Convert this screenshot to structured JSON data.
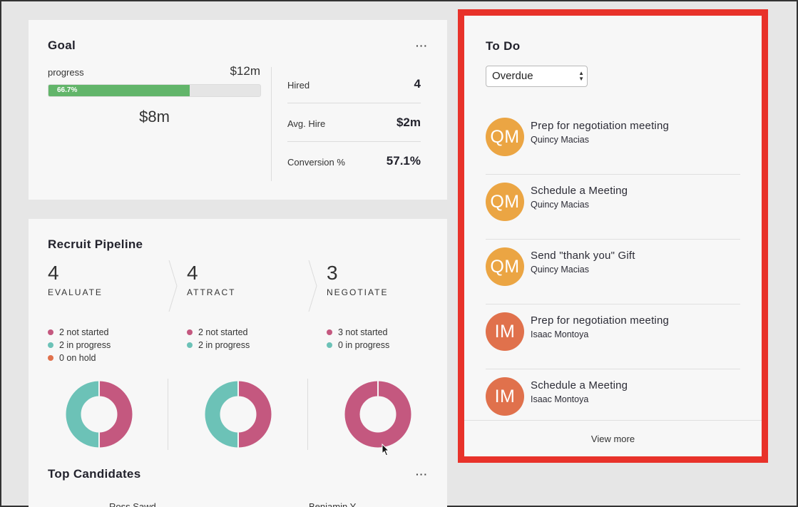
{
  "goal": {
    "title": "Goal",
    "more_label": "···",
    "progress_label": "progress",
    "target": "$12m",
    "progress_percent_label": "66.7%",
    "progress_fraction": 0.667,
    "current": "$8m",
    "stats": [
      {
        "label": "Hired",
        "value": "4"
      },
      {
        "label": "Avg. Hire",
        "value": "$2m"
      },
      {
        "label": "Conversion %",
        "value": "57.1%"
      }
    ]
  },
  "pipeline": {
    "title": "Recruit Pipeline",
    "colors": {
      "not_started": "#c4587f",
      "in_progress": "#6cc2b7",
      "on_hold": "#e0714c"
    },
    "stages": [
      {
        "count": "4",
        "name": "EVALUATE",
        "legend": [
          "2 not started",
          "2 in progress",
          "0 on hold"
        ],
        "donut": {
          "not_started": 2,
          "in_progress": 2,
          "on_hold": 0
        }
      },
      {
        "count": "4",
        "name": "ATTRACT",
        "legend": [
          "2 not started",
          "2 in progress"
        ],
        "donut": {
          "not_started": 2,
          "in_progress": 2
        }
      },
      {
        "count": "3",
        "name": "NEGOTIATE",
        "legend": [
          "3 not started",
          "0 in progress"
        ],
        "donut": {
          "not_started": 3,
          "in_progress": 0
        }
      }
    ]
  },
  "top_candidates": {
    "title": "Top Candidates",
    "more_label": "···",
    "partial_columns": [
      "Ross Sawd",
      "Benjamin Y"
    ]
  },
  "todo": {
    "title": "To Do",
    "filter": "Overdue",
    "items": [
      {
        "task": "Prep for negotiation meeting",
        "person": "Quincy Macias",
        "initials": "QM",
        "color": "#eba543"
      },
      {
        "task": "Schedule a Meeting",
        "person": "Quincy Macias",
        "initials": "QM",
        "color": "#eba543"
      },
      {
        "task": "Send \"thank you\" Gift",
        "person": "Quincy Macias",
        "initials": "QM",
        "color": "#eba543"
      },
      {
        "task": "Prep for negotiation meeting",
        "person": "Isaac Montoya",
        "initials": "IM",
        "color": "#e0714c"
      },
      {
        "task": "Schedule a Meeting",
        "person": "Isaac Montoya",
        "initials": "IM",
        "color": "#e0714c"
      }
    ],
    "view_more": "View more"
  }
}
